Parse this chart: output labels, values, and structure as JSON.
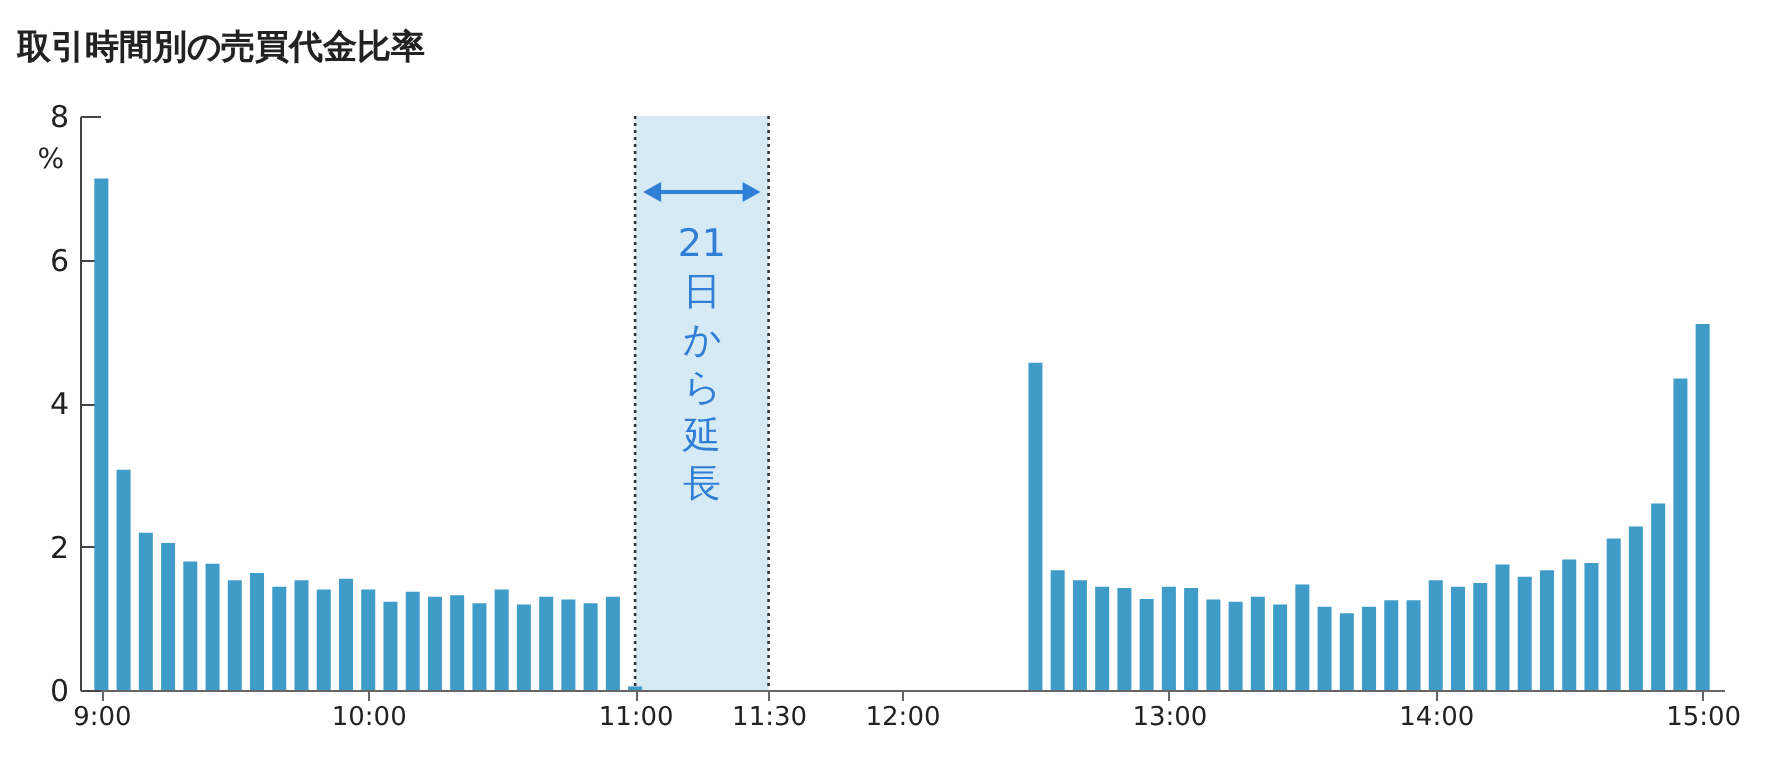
{
  "chart_data": {
    "type": "bar",
    "title": "取引時間別の売買代金比率",
    "ylabel": "%",
    "x": [
      9,
      9.0833,
      9.1667,
      9.25,
      9.3333,
      9.4167,
      9.5,
      9.5833,
      9.6667,
      9.75,
      9.8333,
      9.9167,
      10,
      10.0833,
      10.1667,
      10.25,
      10.3333,
      10.4167,
      10.5,
      10.5833,
      10.6667,
      10.75,
      10.8333,
      10.9167,
      11,
      12.5,
      12.5833,
      12.6667,
      12.75,
      12.8333,
      12.9167,
      13,
      13.0833,
      13.1667,
      13.25,
      13.3333,
      13.4167,
      13.5,
      13.5833,
      13.6667,
      13.75,
      13.8333,
      13.9167,
      14,
      14.0833,
      14.1667,
      14.25,
      14.3333,
      14.4167,
      14.5,
      14.5833,
      14.6667,
      14.75,
      14.8333,
      14.9167,
      15
    ],
    "values": [
      7.13,
      3.07,
      2.19,
      2.05,
      1.79,
      1.76,
      1.53,
      1.63,
      1.44,
      1.53,
      1.4,
      1.55,
      1.4,
      1.23,
      1.37,
      1.3,
      1.32,
      1.21,
      1.4,
      1.19,
      1.3,
      1.26,
      1.21,
      1.3,
      0.05,
      4.56,
      1.67,
      1.53,
      1.44,
      1.42,
      1.27,
      1.44,
      1.42,
      1.26,
      1.23,
      1.3,
      1.19,
      1.47,
      1.16,
      1.07,
      1.16,
      1.25,
      1.25,
      1.53,
      1.44,
      1.49,
      1.75,
      1.58,
      1.67,
      1.82,
      1.77,
      2.11,
      2.28,
      2.6,
      4.34,
      5.1
    ],
    "color": "#3f9cc8",
    "xlim": [
      8.92,
      15.08
    ],
    "xticks": [
      {
        "value": 9,
        "label": "9:00"
      },
      {
        "value": 10,
        "label": "10:00"
      },
      {
        "value": 11,
        "label": "11:00"
      },
      {
        "value": 11.5,
        "label": "11:30"
      },
      {
        "value": 12,
        "label": "12:00"
      },
      {
        "value": 13,
        "label": "13:00"
      },
      {
        "value": 14,
        "label": "14:00"
      },
      {
        "value": 15,
        "label": "15:00"
      }
    ],
    "ylim": [
      0,
      8
    ],
    "yticks": [
      0,
      2,
      4,
      6,
      8
    ],
    "bands": [
      {
        "axis": "x",
        "from": 11,
        "to": 11.5,
        "label": "21日から延長",
        "color": "#d6eaf5"
      }
    ]
  }
}
